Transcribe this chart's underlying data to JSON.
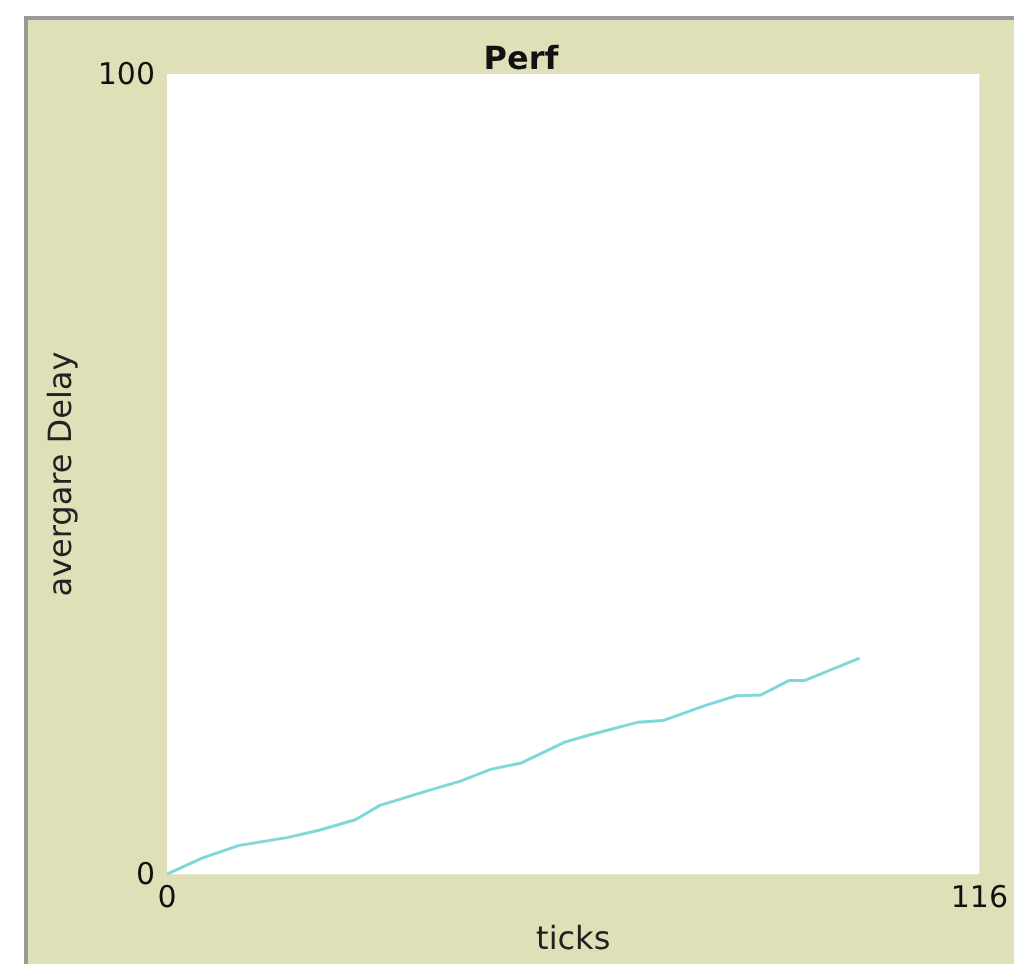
{
  "chart_data": {
    "type": "line",
    "title": "Perf",
    "xlabel": "ticks",
    "ylabel": "avergare Delay",
    "series": [
      {
        "color": "#7fd7d9",
        "x": [
          0,
          5,
          10.3,
          17.3,
          21.7,
          26.9,
          30.4,
          37.5,
          41.8,
          46.2,
          50.6,
          56.8,
          60.3,
          67.3,
          70.8,
          76.9,
          81.3,
          84.8,
          88.8,
          91,
          98.9
        ],
        "values": [
          0,
          2,
          3.6,
          4.6,
          5.5,
          6.8,
          8.6,
          10.5,
          11.6,
          13.1,
          13.9,
          16.5,
          17.4,
          19,
          19.2,
          21.1,
          22.3,
          22.4,
          24.2,
          24.2,
          27
        ]
      }
    ],
    "xlim": [
      0,
      116
    ],
    "xticks": [
      0,
      116
    ],
    "ylim": [
      0,
      100
    ],
    "yticks": [
      0,
      100
    ],
    "grid": false,
    "marker": "none"
  }
}
